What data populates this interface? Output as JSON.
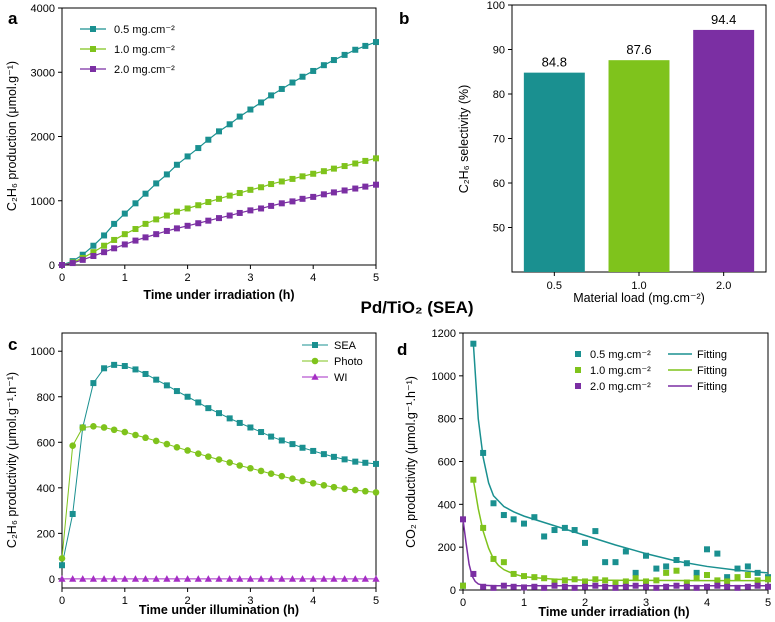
{
  "figure_title": "Pd/TiO₂ (SEA)",
  "chart_data": [
    {
      "panel": "a",
      "type": "line",
      "xlabel": "Time under irradiation (h)",
      "ylabel": "C₂H₆ production (μmol.g⁻¹)",
      "xlim": [
        0,
        5
      ],
      "ylim": [
        0,
        4000
      ],
      "xticks": [
        "0",
        "1",
        "2",
        "3",
        "4",
        "5"
      ],
      "yticks": [
        "0",
        "1000",
        "2000",
        "3000",
        "4000"
      ],
      "legend_position": "top-left",
      "series": [
        {
          "name": "0.5 mg.cm⁻²",
          "color": "#1a9090",
          "marker": "square",
          "x": [
            0,
            0.17,
            0.33,
            0.5,
            0.67,
            0.83,
            1,
            1.17,
            1.33,
            1.5,
            1.67,
            1.83,
            2,
            2.17,
            2.33,
            2.5,
            2.67,
            2.83,
            3,
            3.17,
            3.33,
            3.5,
            3.67,
            3.83,
            4,
            4.17,
            4.33,
            4.5,
            4.67,
            4.83,
            5
          ],
          "values": [
            0,
            60,
            160,
            300,
            460,
            640,
            800,
            960,
            1110,
            1270,
            1410,
            1560,
            1690,
            1820,
            1950,
            2080,
            2190,
            2310,
            2420,
            2530,
            2640,
            2740,
            2840,
            2930,
            3020,
            3110,
            3190,
            3270,
            3350,
            3410,
            3470
          ]
        },
        {
          "name": "1.0 mg.cm⁻²",
          "color": "#7fc31c",
          "marker": "square",
          "x": [
            0,
            0.17,
            0.33,
            0.5,
            0.67,
            0.83,
            1,
            1.17,
            1.33,
            1.5,
            1.67,
            1.83,
            2,
            2.17,
            2.33,
            2.5,
            2.67,
            2.83,
            3,
            3.17,
            3.33,
            3.5,
            3.67,
            3.83,
            4,
            4.17,
            4.33,
            4.5,
            4.67,
            4.83,
            5
          ],
          "values": [
            0,
            40,
            110,
            200,
            300,
            390,
            480,
            560,
            640,
            710,
            770,
            830,
            880,
            930,
            980,
            1030,
            1080,
            1120,
            1170,
            1210,
            1260,
            1300,
            1340,
            1380,
            1420,
            1460,
            1500,
            1540,
            1580,
            1620,
            1660
          ]
        },
        {
          "name": "2.0 mg.cm⁻²",
          "color": "#7b2fa3",
          "marker": "square",
          "x": [
            0,
            0.17,
            0.33,
            0.5,
            0.67,
            0.83,
            1,
            1.17,
            1.33,
            1.5,
            1.67,
            1.83,
            2,
            2.17,
            2.33,
            2.5,
            2.67,
            2.83,
            3,
            3.17,
            3.33,
            3.5,
            3.67,
            3.83,
            4,
            4.17,
            4.33,
            4.5,
            4.67,
            4.83,
            5
          ],
          "values": [
            0,
            30,
            80,
            140,
            200,
            260,
            320,
            380,
            430,
            480,
            530,
            570,
            610,
            650,
            690,
            730,
            770,
            810,
            850,
            880,
            920,
            960,
            990,
            1030,
            1060,
            1100,
            1130,
            1160,
            1190,
            1220,
            1250
          ]
        }
      ]
    },
    {
      "panel": "b",
      "type": "bar",
      "xlabel": "Material load (mg.cm⁻²)",
      "ylabel": "C₂H₆ selectivity (%)",
      "ylim": [
        40,
        100
      ],
      "yticks": [
        "50",
        "60",
        "70",
        "80",
        "90",
        "100"
      ],
      "categories": [
        "0.5",
        "1.0",
        "2.0"
      ],
      "values": [
        84.8,
        87.6,
        94.4
      ],
      "labels": [
        "84.8",
        "87.6",
        "94.4"
      ],
      "colors": [
        "#1a9090",
        "#7fc31c",
        "#7b2fa3"
      ]
    },
    {
      "panel": "c",
      "type": "line",
      "xlabel": "Time under illumination (h)",
      "ylabel": "C₂H₆ productivity (μmol.g⁻¹.h⁻¹)",
      "xlim": [
        0,
        5
      ],
      "ylim": [
        -40,
        1080
      ],
      "xticks": [
        "0",
        "1",
        "2",
        "3",
        "4",
        "5"
      ],
      "yticks": [
        "0",
        "200",
        "400",
        "600",
        "800",
        "1000"
      ],
      "legend_position": "top-right",
      "series": [
        {
          "name": "SEA",
          "color": "#1a9090",
          "marker": "square",
          "x": [
            0,
            0.17,
            0.33,
            0.5,
            0.67,
            0.83,
            1,
            1.17,
            1.33,
            1.5,
            1.67,
            1.83,
            2,
            2.17,
            2.33,
            2.5,
            2.67,
            2.83,
            3,
            3.17,
            3.33,
            3.5,
            3.67,
            3.83,
            4,
            4.17,
            4.33,
            4.5,
            4.67,
            4.83,
            5
          ],
          "values": [
            60,
            285,
            665,
            860,
            925,
            940,
            935,
            920,
            900,
            875,
            850,
            825,
            800,
            775,
            750,
            728,
            705,
            685,
            665,
            645,
            625,
            608,
            592,
            576,
            562,
            548,
            536,
            525,
            515,
            510,
            505
          ]
        },
        {
          "name": "Photo",
          "color": "#7fc31c",
          "marker": "circle",
          "x": [
            0,
            0.17,
            0.33,
            0.5,
            0.67,
            0.83,
            1,
            1.17,
            1.33,
            1.5,
            1.67,
            1.83,
            2,
            2.17,
            2.33,
            2.5,
            2.67,
            2.83,
            3,
            3.17,
            3.33,
            3.5,
            3.67,
            3.83,
            4,
            4.17,
            4.33,
            4.5,
            4.67,
            4.83,
            5
          ],
          "values": [
            90,
            585,
            665,
            670,
            665,
            655,
            645,
            632,
            620,
            606,
            592,
            578,
            564,
            550,
            537,
            524,
            511,
            498,
            486,
            474,
            462,
            451,
            440,
            430,
            420,
            411,
            403,
            396,
            390,
            385,
            380
          ]
        },
        {
          "name": "WI",
          "color": "#a52ec4",
          "marker": "triangle",
          "x": [
            0,
            0.17,
            0.33,
            0.5,
            0.67,
            0.83,
            1,
            1.17,
            1.33,
            1.5,
            1.67,
            1.83,
            2,
            2.17,
            2.33,
            2.5,
            2.67,
            2.83,
            3,
            3.17,
            3.33,
            3.5,
            3.67,
            3.83,
            4,
            4.17,
            4.33,
            4.5,
            4.67,
            4.83,
            5
          ],
          "values": [
            0,
            0,
            0,
            0,
            0,
            0,
            0,
            0,
            0,
            0,
            0,
            0,
            0,
            0,
            0,
            0,
            0,
            0,
            0,
            0,
            0,
            0,
            0,
            0,
            0,
            0,
            0,
            0,
            0,
            0,
            0
          ]
        }
      ]
    },
    {
      "panel": "d",
      "type": "scatter",
      "xlabel": "Time under irradiation (h)",
      "ylabel": "CO₂ productivity (μmol.g⁻¹.h⁻¹)",
      "xlim": [
        0,
        5
      ],
      "ylim": [
        0,
        1200
      ],
      "xticks": [
        "0",
        "1",
        "2",
        "3",
        "4",
        "5"
      ],
      "yticks": [
        "0",
        "200",
        "400",
        "600",
        "800",
        "1000",
        "1200"
      ],
      "legend_position": "top-right",
      "series": [
        {
          "name": "0.5 mg.cm⁻²",
          "fit_name": "Fitting",
          "color": "#1a9090",
          "marker": "square",
          "x": [
            0,
            0.17,
            0.33,
            0.5,
            0.67,
            0.83,
            1,
            1.17,
            1.33,
            1.5,
            1.67,
            1.83,
            2,
            2.17,
            2.33,
            2.5,
            2.67,
            2.83,
            3,
            3.17,
            3.33,
            3.5,
            3.67,
            3.83,
            4,
            4.17,
            4.33,
            4.5,
            4.67,
            4.83,
            5
          ],
          "values": [
            20,
            1150,
            640,
            405,
            350,
            330,
            310,
            340,
            250,
            280,
            290,
            280,
            220,
            275,
            130,
            130,
            180,
            80,
            160,
            100,
            110,
            140,
            125,
            80,
            190,
            170,
            60,
            100,
            110,
            80,
            60
          ],
          "fit": [
            [
              0.17,
              1150
            ],
            [
              0.25,
              800
            ],
            [
              0.33,
              620
            ],
            [
              0.42,
              500
            ],
            [
              0.5,
              440
            ],
            [
              0.67,
              390
            ],
            [
              0.83,
              365
            ],
            [
              1,
              345
            ],
            [
              1.5,
              300
            ],
            [
              2,
              255
            ],
            [
              2.5,
              210
            ],
            [
              3,
              170
            ],
            [
              3.5,
              135
            ],
            [
              4,
              110
            ],
            [
              4.5,
              92
            ],
            [
              5,
              80
            ]
          ]
        },
        {
          "name": "1.0 mg.cm⁻²",
          "fit_name": "Fitting",
          "color": "#7fc31c",
          "marker": "square",
          "x": [
            0,
            0.17,
            0.33,
            0.5,
            0.67,
            0.83,
            1,
            1.17,
            1.33,
            1.5,
            1.67,
            1.83,
            2,
            2.17,
            2.33,
            2.5,
            2.67,
            2.83,
            3,
            3.17,
            3.33,
            3.5,
            3.67,
            3.83,
            4,
            4.17,
            4.33,
            4.5,
            4.67,
            4.83,
            5
          ],
          "values": [
            20,
            515,
            290,
            145,
            130,
            75,
            65,
            60,
            55,
            40,
            45,
            50,
            40,
            50,
            45,
            35,
            40,
            55,
            40,
            45,
            80,
            90,
            35,
            55,
            70,
            45,
            40,
            60,
            70,
            45,
            50
          ],
          "fit": [
            [
              0.17,
              515
            ],
            [
              0.25,
              380
            ],
            [
              0.33,
              275
            ],
            [
              0.42,
              195
            ],
            [
              0.5,
              145
            ],
            [
              0.58,
              115
            ],
            [
              0.67,
              95
            ],
            [
              0.83,
              75
            ],
            [
              1,
              62
            ],
            [
              1.5,
              50
            ],
            [
              2,
              46
            ],
            [
              3,
              45
            ],
            [
              4,
              44
            ],
            [
              5,
              44
            ]
          ]
        },
        {
          "name": "2.0 mg.cm⁻²",
          "fit_name": "Fitting",
          "color": "#7b2fa3",
          "marker": "square",
          "x": [
            0,
            0.17,
            0.33,
            0.5,
            0.67,
            0.83,
            1,
            1.17,
            1.33,
            1.5,
            1.67,
            1.83,
            2,
            2.17,
            2.33,
            2.5,
            2.67,
            2.83,
            3,
            3.17,
            3.33,
            3.5,
            3.67,
            3.83,
            4,
            4.17,
            4.33,
            4.5,
            4.67,
            4.83,
            5
          ],
          "values": [
            330,
            75,
            15,
            10,
            20,
            15,
            12,
            15,
            10,
            20,
            15,
            10,
            15,
            20,
            15,
            10,
            15,
            20,
            15,
            10,
            15,
            20,
            15,
            10,
            15,
            20,
            15,
            10,
            15,
            20,
            15
          ],
          "fit": [
            [
              0,
              330
            ],
            [
              0.05,
              220
            ],
            [
              0.1,
              120
            ],
            [
              0.15,
              65
            ],
            [
              0.2,
              40
            ],
            [
              0.25,
              28
            ],
            [
              0.33,
              22
            ],
            [
              0.5,
              20
            ],
            [
              1,
              20
            ],
            [
              2,
              20
            ],
            [
              3,
              20
            ],
            [
              4,
              20
            ],
            [
              5,
              20
            ]
          ]
        }
      ]
    }
  ]
}
